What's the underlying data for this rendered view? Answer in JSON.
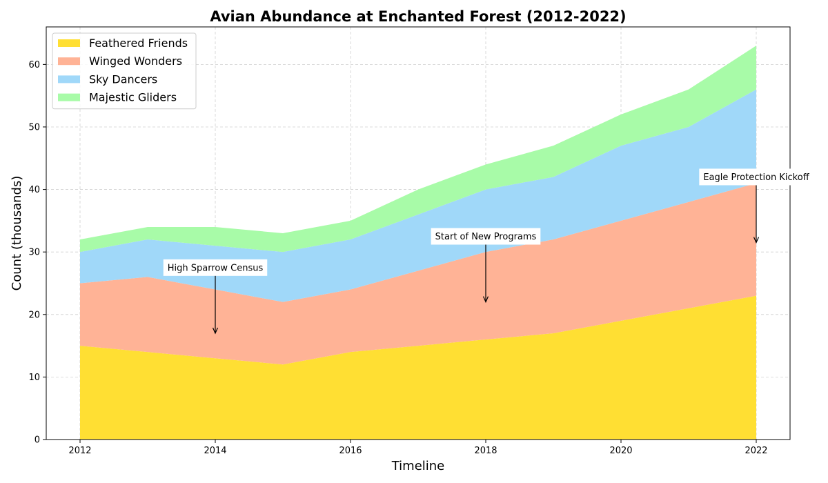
{
  "chart_data": {
    "type": "area",
    "stacked": true,
    "title": "Avian Abundance at Enchanted Forest (2012-2022)",
    "xlabel": "Timeline",
    "ylabel": "Count (thousands)",
    "x": [
      2012,
      2013,
      2014,
      2015,
      2016,
      2017,
      2018,
      2019,
      2020,
      2021,
      2022
    ],
    "xticks": [
      "2012",
      "2014",
      "2016",
      "2018",
      "2020",
      "2022"
    ],
    "yticks": [
      "0",
      "10",
      "20",
      "30",
      "40",
      "50",
      "60"
    ],
    "xlim": [
      2011.5,
      2022.5
    ],
    "ylim": [
      0,
      66
    ],
    "grid": true,
    "legend_position": "top-left",
    "series": [
      {
        "name": "Feathered Friends",
        "color": "#FFDF33",
        "values": [
          15,
          14,
          13,
          12,
          14,
          15,
          16,
          17,
          19,
          21,
          23
        ]
      },
      {
        "name": "Winged Wonders",
        "color": "#FFB396",
        "values": [
          10,
          12,
          11,
          10,
          10,
          12,
          14,
          15,
          16,
          17,
          18
        ]
      },
      {
        "name": "Sky Dancers",
        "color": "#A0D8F9",
        "values": [
          5,
          6,
          7,
          8,
          8,
          9,
          10,
          10,
          12,
          12,
          15
        ]
      },
      {
        "name": "Majestic Gliders",
        "color": "#A8FBA8",
        "values": [
          2,
          2,
          3,
          3,
          3,
          4,
          4,
          5,
          5,
          6,
          7
        ]
      }
    ],
    "annotations": [
      {
        "text": "High Sparrow Census",
        "x": 2014,
        "text_y": 27.5,
        "arrow_to_y": 17
      },
      {
        "text": "Start of New Programs",
        "x": 2018,
        "text_y": 32.5,
        "arrow_to_y": 22
      },
      {
        "text": "Eagle Protection Kickoff",
        "x": 2022,
        "text_y": 42,
        "arrow_to_y": 31.5
      }
    ]
  }
}
